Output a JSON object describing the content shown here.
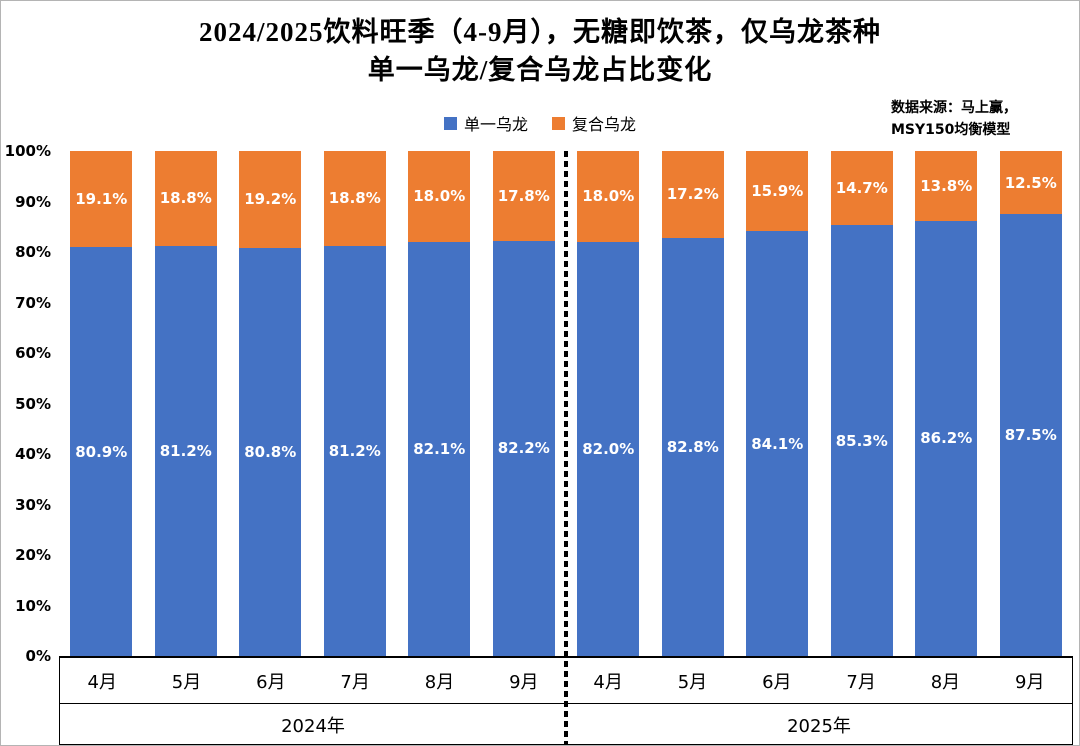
{
  "page": {
    "background": "#ffffff",
    "border_color": "#b4b4b4"
  },
  "title": {
    "line1": "2024/2025饮料旺季（4-9月），无糖即饮茶，仅乌龙茶种",
    "line2": "单一乌龙/复合乌龙占比变化"
  },
  "source_note": {
    "line1": "数据来源：马上赢，",
    "line2": "MSY150均衡模型"
  },
  "legend": {
    "items": [
      {
        "label": "单一乌龙",
        "color": "#4472C4"
      },
      {
        "label": "复合乌龙",
        "color": "#ED7D31"
      }
    ]
  },
  "chart_data": {
    "type": "bar",
    "subtype": "100-percent-stacked-column",
    "title": "2024/2025饮料旺季（4-9月），无糖即饮茶，仅乌龙茶种 单一乌龙/复合乌龙占比变化",
    "categories": [
      "4月",
      "5月",
      "6月",
      "7月",
      "8月",
      "9月",
      "4月",
      "5月",
      "6月",
      "7月",
      "8月",
      "9月"
    ],
    "group_labels": [
      {
        "label": "2024年",
        "span": 6
      },
      {
        "label": "2025年",
        "span": 6
      }
    ],
    "series": [
      {
        "name": "单一乌龙",
        "color": "#4472C4",
        "values": [
          80.9,
          81.2,
          80.8,
          81.2,
          82.1,
          82.2,
          82.0,
          82.8,
          84.1,
          85.3,
          86.2,
          87.5
        ],
        "labels": [
          "80.9%",
          "81.2%",
          "80.8%",
          "81.2%",
          "82.1%",
          "82.2%",
          "82.0%",
          "82.8%",
          "84.1%",
          "85.3%",
          "86.2%",
          "87.5%"
        ]
      },
      {
        "name": "复合乌龙",
        "color": "#ED7D31",
        "values": [
          19.1,
          18.8,
          19.2,
          18.8,
          18.0,
          17.8,
          18.0,
          17.2,
          15.9,
          14.7,
          13.8,
          12.5
        ],
        "labels": [
          "19.1%",
          "18.8%",
          "19.2%",
          "18.8%",
          "18.0%",
          "17.8%",
          "18.0%",
          "17.2%",
          "15.9%",
          "14.7%",
          "13.8%",
          "12.5%"
        ]
      }
    ],
    "ylim": [
      0,
      100
    ],
    "yticks": [
      0,
      10,
      20,
      30,
      40,
      50,
      60,
      70,
      80,
      90,
      100
    ],
    "ytick_labels": [
      "0%",
      "10%",
      "20%",
      "30%",
      "40%",
      "50%",
      "60%",
      "70%",
      "80%",
      "90%",
      "100%"
    ],
    "grid": false,
    "legend_position": "top",
    "divider_after_category_index": 5
  }
}
